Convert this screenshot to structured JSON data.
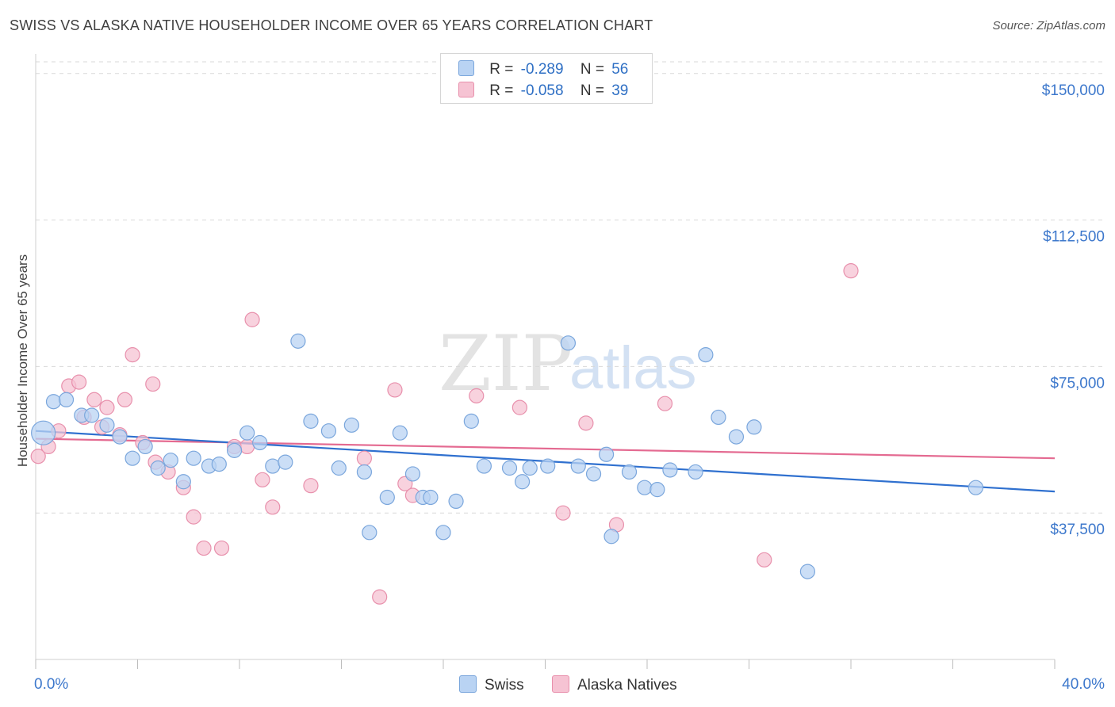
{
  "title": "SWISS VS ALASKA NATIVE HOUSEHOLDER INCOME OVER 65 YEARS CORRELATION CHART",
  "source": "Source: ZipAtlas.com",
  "watermark": {
    "part1": "ZIP",
    "part2": "atlas"
  },
  "legend": {
    "swiss": {
      "r_label": "R =",
      "r_value": "-0.289",
      "n_label": "N =",
      "n_value": "56"
    },
    "alaska": {
      "r_label": "R =",
      "r_value": "-0.058",
      "n_label": "N =",
      "n_value": "39"
    }
  },
  "bottom_legend": {
    "swiss": "Swiss",
    "alaska": "Alaska Natives"
  },
  "colors": {
    "swiss_fill": "#b9d3f3",
    "swiss_stroke": "#7aa6dc",
    "swiss_line": "#2f70cf",
    "alaska_fill": "#f6c3d3",
    "alaska_stroke": "#e890ac",
    "alaska_line": "#e46a91",
    "axis_label": "#3d78cc",
    "grid": "#d9d9d9"
  },
  "chart_data": {
    "type": "scatter",
    "title": "SWISS VS ALASKA NATIVE HOUSEHOLDER INCOME OVER 65 YEARS CORRELATION CHART",
    "xlabel": "",
    "ylabel": "Householder Income Over 65 years",
    "xlim": [
      0,
      40
    ],
    "ylim": [
      0,
      153000
    ],
    "x_tick_labels": [
      "0.0%",
      "40.0%"
    ],
    "y_ticks": [
      37500,
      75000,
      112500,
      150000
    ],
    "y_tick_labels": [
      "$37,500",
      "$75,000",
      "$112,500",
      "$150,000"
    ],
    "grid": "horizontal dashed",
    "series": [
      {
        "name": "Swiss",
        "points": [
          [
            0.3,
            58000
          ],
          [
            0.7,
            66000
          ],
          [
            1.2,
            66500
          ],
          [
            1.8,
            62500
          ],
          [
            2.2,
            62500
          ],
          [
            2.8,
            60000
          ],
          [
            3.3,
            57000
          ],
          [
            3.8,
            51500
          ],
          [
            4.3,
            54500
          ],
          [
            4.8,
            49000
          ],
          [
            5.3,
            51000
          ],
          [
            5.8,
            45500
          ],
          [
            6.2,
            51500
          ],
          [
            6.8,
            49500
          ],
          [
            7.2,
            50000
          ],
          [
            7.8,
            53500
          ],
          [
            8.3,
            58000
          ],
          [
            8.8,
            55500
          ],
          [
            9.3,
            49500
          ],
          [
            9.8,
            50500
          ],
          [
            10.3,
            81500
          ],
          [
            10.8,
            61000
          ],
          [
            11.5,
            58500
          ],
          [
            11.9,
            49000
          ],
          [
            12.4,
            60000
          ],
          [
            12.9,
            48000
          ],
          [
            13.1,
            32500
          ],
          [
            13.8,
            41500
          ],
          [
            14.3,
            58000
          ],
          [
            14.8,
            47500
          ],
          [
            15.2,
            41500
          ],
          [
            15.5,
            41500
          ],
          [
            16.0,
            32500
          ],
          [
            16.5,
            40500
          ],
          [
            17.1,
            61000
          ],
          [
            17.6,
            49500
          ],
          [
            18.6,
            49000
          ],
          [
            19.1,
            45500
          ],
          [
            19.4,
            49000
          ],
          [
            20.1,
            49500
          ],
          [
            20.9,
            81000
          ],
          [
            21.3,
            49500
          ],
          [
            21.9,
            47500
          ],
          [
            22.4,
            52500
          ],
          [
            22.6,
            31500
          ],
          [
            23.3,
            48000
          ],
          [
            23.9,
            44000
          ],
          [
            24.4,
            43500
          ],
          [
            24.9,
            48500
          ],
          [
            25.9,
            48000
          ],
          [
            26.3,
            78000
          ],
          [
            26.8,
            62000
          ],
          [
            27.5,
            57000
          ],
          [
            28.2,
            59500
          ],
          [
            30.3,
            22500
          ],
          [
            36.9,
            44000
          ]
        ]
      },
      {
        "name": "Alaska Natives",
        "points": [
          [
            0.1,
            52000
          ],
          [
            0.5,
            54500
          ],
          [
            0.9,
            58500
          ],
          [
            1.3,
            70000
          ],
          [
            1.7,
            71000
          ],
          [
            1.9,
            62000
          ],
          [
            2.3,
            66500
          ],
          [
            2.6,
            59500
          ],
          [
            2.8,
            64500
          ],
          [
            3.3,
            57500
          ],
          [
            3.5,
            66500
          ],
          [
            3.8,
            78000
          ],
          [
            4.2,
            55500
          ],
          [
            4.6,
            70500
          ],
          [
            4.7,
            50500
          ],
          [
            5.2,
            48000
          ],
          [
            5.8,
            44000
          ],
          [
            6.2,
            36500
          ],
          [
            6.6,
            28500
          ],
          [
            7.3,
            28500
          ],
          [
            7.8,
            54500
          ],
          [
            8.3,
            54500
          ],
          [
            8.5,
            87000
          ],
          [
            8.9,
            46000
          ],
          [
            9.3,
            39000
          ],
          [
            10.8,
            44500
          ],
          [
            12.9,
            51500
          ],
          [
            13.5,
            16000
          ],
          [
            14.1,
            69000
          ],
          [
            14.5,
            45000
          ],
          [
            14.8,
            42000
          ],
          [
            17.3,
            67500
          ],
          [
            19.0,
            64500
          ],
          [
            20.7,
            37500
          ],
          [
            21.6,
            60500
          ],
          [
            22.8,
            34500
          ],
          [
            24.7,
            65500
          ],
          [
            28.6,
            25500
          ],
          [
            32.0,
            99500
          ]
        ]
      }
    ],
    "trend_lines": [
      {
        "name": "Swiss",
        "x": [
          0,
          40
        ],
        "y": [
          58500,
          43000
        ]
      },
      {
        "name": "Alaska Natives",
        "x": [
          0,
          40
        ],
        "y": [
          56500,
          51500
        ]
      }
    ],
    "legend_position": "top-center"
  }
}
